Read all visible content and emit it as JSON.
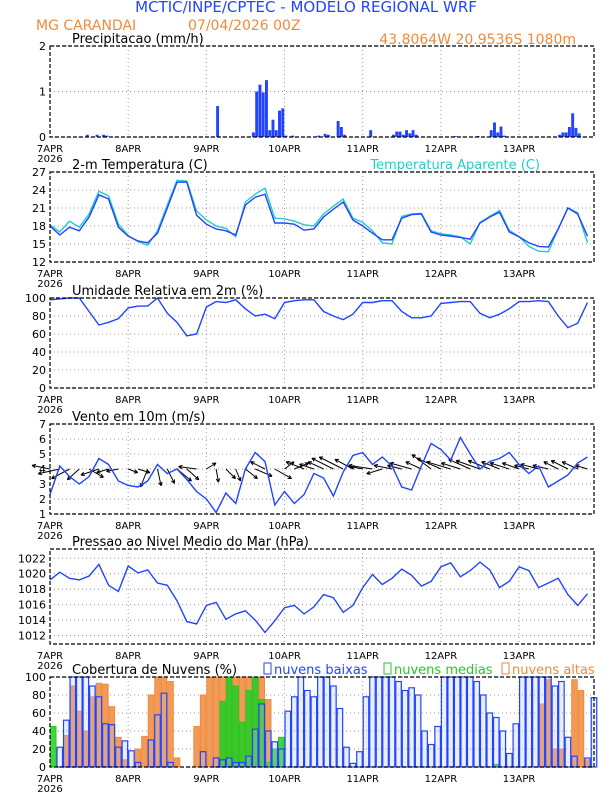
{
  "header": {
    "title": "MCTIC/INPE/CPTEC - MODELO REGIONAL WRF",
    "location": "MG CARANDAI",
    "run": "07/04/2026 00Z",
    "coords": "43.8064W 20.9536S 1080m"
  },
  "colors": {
    "blue": "#2244ff",
    "cyan": "#22cccc",
    "orange": "#f08a3c",
    "green": "#22cc22",
    "title_blue": "#2244ff",
    "title_orange": "#f08a3c"
  },
  "chart_data": {
    "x_unit": "hours since 07APR2026 00Z",
    "x_range": [
      0,
      167
    ],
    "date_ticks": [
      "7APR",
      "8APR",
      "9APR",
      "10APR",
      "11APR",
      "12APR",
      "13APR"
    ],
    "year_label": "2026",
    "panels": [
      {
        "id": "precip",
        "type": "bar",
        "title": "Precipitacao (mm/h)",
        "ylim": [
          0,
          2
        ],
        "yticks": [
          0,
          1,
          2
        ],
        "bars": [
          [
            11,
            0.05
          ],
          [
            14,
            0.05
          ],
          [
            16,
            0.05
          ],
          [
            17,
            0.03
          ],
          [
            51,
            0.68
          ],
          [
            62,
            0.1
          ],
          [
            63,
            1.0
          ],
          [
            64,
            1.15
          ],
          [
            65,
            0.98
          ],
          [
            66,
            1.25
          ],
          [
            67,
            0.15
          ],
          [
            68,
            0.38
          ],
          [
            69,
            0.15
          ],
          [
            70,
            0.58
          ],
          [
            71,
            0.63
          ],
          [
            72,
            0.03
          ],
          [
            74,
            0.03
          ],
          [
            82,
            0.03
          ],
          [
            84,
            0.07
          ],
          [
            85,
            0.05
          ],
          [
            88,
            0.35
          ],
          [
            89,
            0.22
          ],
          [
            90,
            0.05
          ],
          [
            98,
            0.15
          ],
          [
            105,
            0.05
          ],
          [
            106,
            0.12
          ],
          [
            107,
            0.12
          ],
          [
            108,
            0.05
          ],
          [
            109,
            0.15
          ],
          [
            110,
            0.08
          ],
          [
            111,
            0.15
          ],
          [
            112,
            0.05
          ],
          [
            124,
            0.02
          ],
          [
            131,
            0.02
          ],
          [
            135,
            0.15
          ],
          [
            136,
            0.32
          ],
          [
            137,
            0.1
          ],
          [
            138,
            0.23
          ],
          [
            139,
            0.03
          ],
          [
            156,
            0.05
          ],
          [
            157,
            0.1
          ],
          [
            158,
            0.1
          ],
          [
            159,
            0.22
          ],
          [
            160,
            0.52
          ],
          [
            161,
            0.2
          ],
          [
            162,
            0.08
          ]
        ]
      },
      {
        "id": "temp",
        "type": "line",
        "title": "2-m Temperatura (C)",
        "legend": "Temperatura Aparente (C)",
        "ylim": [
          12,
          27
        ],
        "yticks": [
          12,
          15,
          18,
          21,
          24,
          27
        ],
        "step": 3,
        "series": [
          {
            "name": "Temperatura Aparente (C)",
            "color": "cyan",
            "values": [
              18.2,
              17,
              18.8,
              17.8,
              20,
              23.8,
              23,
              18.3,
              16.4,
              15.4,
              14.8,
              17.2,
              21.5,
              25.6,
              25.5,
              20.5,
              19,
              18,
              17.6,
              16.2,
              22,
              23.3,
              24.3,
              19.3,
              19.2,
              18.8,
              18.2,
              18,
              20,
              21.3,
              22.5,
              19.3,
              18.6,
              17.2,
              15.2,
              15,
              19.6,
              20,
              20.1,
              17.2,
              16.7,
              16.5,
              16.2,
              15,
              18.6,
              19.6,
              20.6,
              17.3,
              16.2,
              14.6,
              13.8,
              13.7,
              17.5,
              21,
              20.2,
              15.2
            ]
          },
          {
            "name": "2-m Temperatura (C)",
            "color": "blue",
            "values": [
              18,
              16.5,
              17.8,
              17.2,
              19.5,
              23.2,
              22.5,
              17.8,
              16.3,
              15.5,
              15.2,
              16.8,
              21,
              25.3,
              25.3,
              19.8,
              18.3,
              17.5,
              17.2,
              16.5,
              21.5,
              22.8,
              23.3,
              18.5,
              18.5,
              18.3,
              17.3,
              17.5,
              19.5,
              20.8,
              22,
              19,
              18,
              16.8,
              15.7,
              15.7,
              19.3,
              19.9,
              20,
              17,
              16.5,
              16.3,
              16.1,
              15.8,
              18.5,
              19.5,
              20.3,
              17,
              16.2,
              15.2,
              14.6,
              14.5,
              17.5,
              21,
              20,
              16.3
            ]
          }
        ]
      },
      {
        "id": "rh",
        "type": "line",
        "title": "Umidade Relativa em 2m (%)",
        "ylim": [
          0,
          100
        ],
        "yticks": [
          0,
          20,
          40,
          60,
          80,
          100
        ],
        "step": 3,
        "series": [
          {
            "name": "Umidade Relativa",
            "color": "blue",
            "values": [
              98,
              99,
              100,
              100,
              85,
              70,
              73,
              77,
              89,
              91,
              91,
              100,
              83,
              73,
              58,
              60,
              90,
              96,
              95,
              98,
              88,
              80,
              82,
              77,
              95,
              97,
              98,
              98,
              85,
              80,
              76,
              82,
              95,
              95,
              97,
              97,
              85,
              78,
              78,
              80,
              94,
              95,
              96,
              96,
              83,
              78,
              82,
              88,
              96,
              96,
              97,
              96,
              80,
              67,
              72,
              95
            ]
          }
        ]
      },
      {
        "id": "wind",
        "type": "line+vector",
        "title": "Vento em 10m (m/s)",
        "ylim": [
          1,
          7
        ],
        "yticks": [
          1,
          2,
          3,
          4,
          5,
          6,
          7
        ],
        "step": 3,
        "vector_base": 4,
        "series": [
          {
            "name": "Velocidade",
            "color": "blue",
            "values": [
              2.3,
              4.2,
              3.5,
              3.0,
              3.5,
              4.7,
              4.3,
              3.2,
              2.9,
              2.8,
              3.2,
              4.3,
              3.7,
              4.0,
              3.3,
              2.5,
              2.0,
              1.1,
              2.4,
              1.7,
              4.0,
              5.1,
              4.5,
              1.6,
              2.5,
              1.7,
              2.3,
              3.7,
              3.4,
              2.2,
              3.8,
              4.9,
              5.1,
              4.3,
              4.8,
              4.2,
              2.8,
              2.6,
              4.2,
              5.7,
              5.3,
              4.6,
              6.1,
              5.0,
              4.0,
              4.5,
              4.7,
              5.1,
              4.3,
              3.7,
              4.2,
              2.8,
              3.2,
              3.6,
              4.4,
              4.8
            ]
          }
        ],
        "vectors": [
          [
            -1.5,
            0.3
          ],
          [
            -1.8,
            -0.4
          ],
          [
            -1.5,
            -0.8
          ],
          [
            -1,
            -0.9
          ],
          [
            1.2,
            -0.7
          ],
          [
            -1.5,
            -0.5
          ],
          [
            -1,
            -0.3
          ],
          [
            -1,
            -0.2
          ],
          [
            0.8,
            -0.3
          ],
          [
            1,
            -0.3
          ],
          [
            -0.6,
            -1.5
          ],
          [
            0.3,
            -1.4
          ],
          [
            0.6,
            -1.2
          ],
          [
            1.2,
            -1
          ],
          [
            1,
            -0.9
          ],
          [
            -1.5,
            0.2
          ],
          [
            0.8,
            0.5
          ],
          [
            0.2,
            -1.1
          ],
          [
            0.8,
            -0.8
          ],
          [
            0.4,
            -1
          ],
          [
            1,
            -0.8
          ],
          [
            1.4,
            -0.6
          ],
          [
            -1.2,
            0.6
          ],
          [
            1.4,
            -0.8
          ],
          [
            0.8,
            0.6
          ],
          [
            1.2,
            0.5
          ],
          [
            -1.5,
            0.6
          ],
          [
            -1.2,
            0.4
          ],
          [
            -1.3,
            0.6
          ],
          [
            -1.8,
            0.9
          ],
          [
            -2,
            1
          ],
          [
            -1.5,
            0.8
          ],
          [
            -1,
            0.2
          ],
          [
            -2,
            0.3
          ],
          [
            -1.3,
            -0.4
          ],
          [
            -1.5,
            0.3
          ],
          [
            -1.2,
            0.3
          ],
          [
            -1.8,
            0.5
          ],
          [
            -1.3,
            0.6
          ],
          [
            -1.6,
            1.2
          ],
          [
            -2,
            0.9
          ],
          [
            -2,
            0.6
          ],
          [
            -1.6,
            0.5
          ],
          [
            -1.8,
            0.8
          ],
          [
            -2,
            0.7
          ],
          [
            -1.8,
            0.7
          ],
          [
            -1.5,
            0.6
          ],
          [
            -1.6,
            0.5
          ],
          [
            -1.4,
            0.5
          ],
          [
            -1.2,
            0.3
          ],
          [
            -1.5,
            0.4
          ],
          [
            -1.3,
            0.3
          ],
          [
            -1.2,
            0.6
          ],
          [
            -1.4,
            0.7
          ],
          [
            -1.3,
            0.6
          ],
          [
            -1,
            0.3
          ]
        ]
      },
      {
        "id": "pres",
        "type": "line",
        "title": "Pressao ao Nivel Medio do Mar (hPa)",
        "ylim": [
          1010.9,
          1023.2
        ],
        "yticks": [
          1012,
          1014,
          1016,
          1018,
          1020,
          1022
        ],
        "step": 3,
        "series": [
          {
            "name": "Pressao",
            "color": "blue",
            "values": [
              1019.2,
              1020.2,
              1019.4,
              1019.2,
              1019.7,
              1021.2,
              1018.5,
              1017.7,
              1021.0,
              1020.1,
              1020.5,
              1018.8,
              1018.5,
              1016.5,
              1013.8,
              1013.5,
              1015.9,
              1016.3,
              1014.1,
              1014.8,
              1015.2,
              1014.0,
              1012.4,
              1013.9,
              1015.6,
              1015.9,
              1014.8,
              1015.7,
              1017.3,
              1016.9,
              1015.0,
              1015.9,
              1018.2,
              1019.9,
              1018.6,
              1019.4,
              1020.6,
              1019.8,
              1018.4,
              1019.0,
              1020.9,
              1021.4,
              1019.6,
              1020.4,
              1021.5,
              1020.5,
              1018.2,
              1019.0,
              1020.9,
              1020.4,
              1018.2,
              1018.8,
              1019.4,
              1017.3,
              1015.9,
              1017.4
            ]
          }
        ]
      },
      {
        "id": "cloud",
        "type": "bar",
        "title": "Cobertura de Nuvens (%)",
        "ylim": [
          0,
          100
        ],
        "yticks": [
          0,
          20,
          40,
          60,
          80,
          100
        ],
        "step": 2,
        "series": [
          {
            "name": "nuvens altas",
            "color": "orange",
            "values": [
              0,
              0,
              35,
              90,
              62,
              40,
              78,
              93,
              92,
              67,
              33,
              8,
              0,
              20,
              34,
              80,
              100,
              100,
              95,
              10,
              0,
              0,
              45,
              80,
              100,
              100,
              100,
              100,
              100,
              100,
              100,
              100,
              100,
              75,
              0,
              0,
              0,
              0,
              0,
              0,
              0,
              0,
              0,
              0,
              0,
              0,
              0,
              0,
              0,
              0,
              0,
              0,
              0,
              0,
              0,
              0,
              0,
              0,
              0,
              0,
              0,
              0,
              0,
              0,
              0,
              0,
              0,
              0,
              0,
              0,
              0,
              0,
              0,
              0,
              0,
              70,
              97,
              20,
              20,
              0,
              97,
              85,
              8,
              0
            ]
          },
          {
            "name": "nuvens medias",
            "color": "green",
            "values": [
              45,
              0,
              0,
              0,
              0,
              0,
              0,
              0,
              0,
              0,
              0,
              0,
              0,
              0,
              0,
              0,
              0,
              0,
              0,
              0,
              0,
              0,
              0,
              0,
              0,
              0,
              73,
              100,
              90,
              50,
              85,
              100,
              75,
              5,
              20,
              33,
              0,
              0,
              0,
              0,
              0,
              0,
              0,
              0,
              0,
              0,
              0,
              0,
              0,
              0,
              0,
              0,
              0,
              0,
              0,
              0,
              0,
              0,
              0,
              0,
              0,
              0,
              0,
              0,
              0,
              0,
              0,
              0,
              3,
              0,
              0,
              0,
              0,
              0,
              0,
              0,
              0,
              0,
              0,
              0,
              0,
              0,
              0,
              0
            ]
          },
          {
            "name": "nuvens baixas",
            "color": "blue",
            "values": [
              0,
              22,
              52,
              100,
              100,
              100,
              90,
              78,
              48,
              47,
              22,
              29,
              18,
              5,
              0,
              30,
              58,
              82,
              5,
              0,
              0,
              0,
              0,
              17,
              0,
              10,
              8,
              10,
              5,
              5,
              12,
              42,
              70,
              40,
              28,
              20,
              62,
              78,
              100,
              85,
              78,
              100,
              100,
              90,
              65,
              22,
              4,
              17,
              78,
              100,
              100,
              100,
              100,
              95,
              85,
              88,
              80,
              40,
              25,
              45,
              100,
              100,
              100,
              100,
              100,
              95,
              80,
              60,
              55,
              40,
              15,
              48,
              100,
              100,
              100,
              100,
              100,
              90,
              95,
              33,
              12,
              0,
              10,
              77
            ]
          }
        ]
      }
    ]
  }
}
